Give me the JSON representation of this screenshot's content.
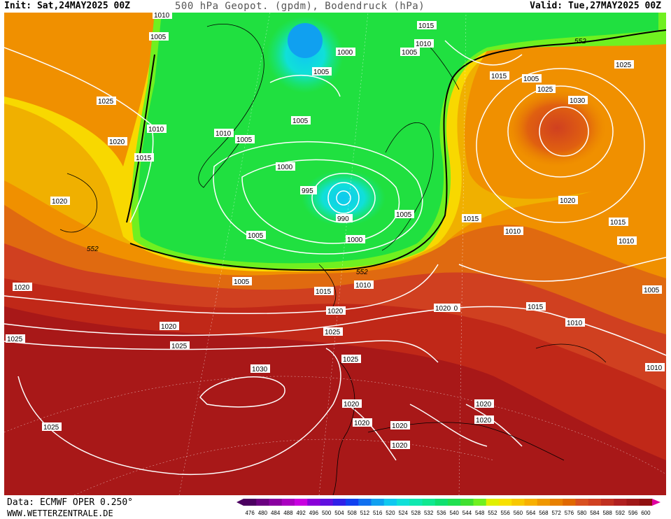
{
  "header": {
    "init": "Init: Sat,24MAY2025 00Z",
    "title": "500 hPa Geopot. (gpdm), Bodendruck (hPa)",
    "valid": "Valid: Tue,27MAY2025 00Z"
  },
  "footer": {
    "data_source": "Data: ECMWF OPER 0.250°",
    "website": "WWW.WETTERZENTRALE.DE"
  },
  "legend": {
    "levels": [
      476,
      480,
      484,
      488,
      492,
      496,
      500,
      504,
      508,
      512,
      516,
      520,
      524,
      528,
      532,
      536,
      540,
      544,
      548,
      552,
      556,
      560,
      564,
      568,
      572,
      576,
      580,
      584,
      588,
      592,
      596,
      600
    ],
    "colors": [
      "#4b0060",
      "#6a0080",
      "#8a00a0",
      "#aa00c0",
      "#c800e0",
      "#8a00d8",
      "#6010e0",
      "#3020e8",
      "#1040f0",
      "#1070f0",
      "#10a0f0",
      "#10c8f0",
      "#10e0d8",
      "#10e8b0",
      "#10e890",
      "#10e070",
      "#20e050",
      "#40e030",
      "#70f020",
      "#e0f000",
      "#f8e000",
      "#f8c800",
      "#f8b000",
      "#f09800",
      "#e88000",
      "#e06800",
      "#d85020",
      "#d04020",
      "#c03020",
      "#b02020",
      "#a01818",
      "#901010"
    ],
    "arrow_color": "#e000a0"
  },
  "map_labels": {
    "isobars": [
      "1010",
      "1005",
      "1015",
      "1010",
      "1005",
      "1000",
      "1005",
      "1025",
      "1005",
      "1010",
      "1020",
      "1015",
      "1025",
      "1030",
      "1015",
      "1025",
      "1010",
      "1005",
      "1005",
      "1020",
      "1000",
      "995",
      "990",
      "1020",
      "1005",
      "1005",
      "1000",
      "1020",
      "1015",
      "1015",
      "1010",
      "1020",
      "1005",
      "1015",
      "1010",
      "1020",
      "1005",
      "1010",
      "1015",
      "1020",
      "1025",
      "1020",
      "1010",
      "1025",
      "1025",
      "1025",
      "1030",
      "1020",
      "1020",
      "1020",
      "1020",
      "1020",
      "1020",
      "1025",
      "1010"
    ],
    "geopotential": [
      "552",
      "552",
      "552"
    ]
  },
  "colors": {
    "green": "#18e030",
    "lime": "#70f020",
    "yellow": "#f0e000",
    "orange": "#f0a000",
    "dark_orange": "#e07010",
    "red_orange": "#d04020",
    "red": "#b02020",
    "dark_red": "#a01818",
    "cyan": "#10d8c0",
    "blue": "#10a0f0"
  }
}
